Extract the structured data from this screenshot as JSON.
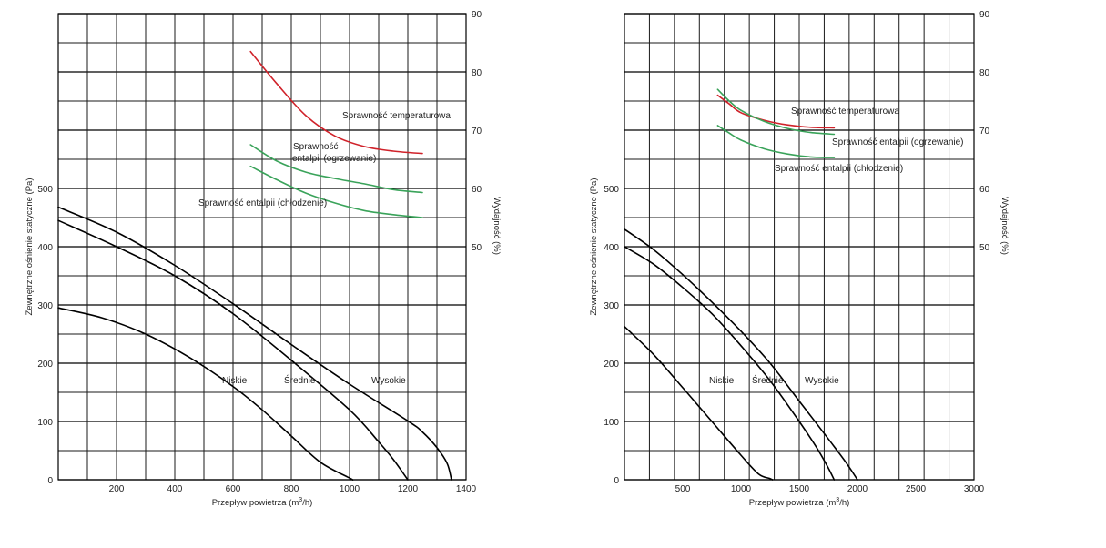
{
  "chart_data": [
    {
      "type": "line",
      "title": "",
      "xlabel": "Przepływ powietrza (m³/h)",
      "ylabel": "Zewnętrzne ośnienie statyczne (Pa)",
      "y2label": "Wydajność (%)",
      "xlim": [
        0,
        1400
      ],
      "ylim": [
        0,
        800
      ],
      "y2lim": [
        10,
        90
      ],
      "xticks": [
        "200",
        "400",
        "600",
        "800",
        "1000",
        "1200",
        "1400"
      ],
      "xtick_values": [
        200,
        400,
        600,
        800,
        1000,
        1200,
        1400
      ],
      "yticks": [
        "0",
        "100",
        "200",
        "300",
        "400",
        "500"
      ],
      "ytick_values": [
        0,
        100,
        200,
        300,
        400,
        500
      ],
      "y2ticks": [
        "50",
        "60",
        "70",
        "80",
        "90"
      ],
      "y2tick_values": [
        50,
        60,
        70,
        80,
        90
      ],
      "pressure_series": [
        {
          "name": "Niskie",
          "axis": "left",
          "color": "#000000",
          "x": [
            0,
            150,
            300,
            450,
            600,
            700,
            800,
            900,
            1000,
            1010
          ],
          "y": [
            295,
            278,
            250,
            210,
            160,
            120,
            75,
            30,
            3,
            0
          ]
        },
        {
          "name": "Średnie",
          "axis": "left",
          "color": "#000000",
          "x": [
            0,
            200,
            400,
            600,
            800,
            1000,
            1100,
            1150,
            1200
          ],
          "y": [
            445,
            400,
            350,
            285,
            205,
            120,
            65,
            35,
            0
          ]
        },
        {
          "name": "Wysokie",
          "axis": "left",
          "color": "#000000",
          "x": [
            0,
            200,
            400,
            600,
            800,
            1000,
            1200,
            1250,
            1300,
            1335,
            1350
          ],
          "y": [
            468,
            425,
            368,
            302,
            232,
            164,
            101,
            82,
            55,
            28,
            0
          ]
        }
      ],
      "efficiency_series": [
        {
          "name": "Sprawność temperaturowa",
          "axis": "right",
          "color": "#d0222a",
          "x": [
            660,
            750,
            850,
            950,
            1050,
            1150,
            1250
          ],
          "y": [
            83.5,
            78,
            72.5,
            69,
            67.2,
            66.4,
            66
          ]
        },
        {
          "name": "Sprawność entalpii (ogrzewanie)",
          "axis": "right",
          "color": "#3aa35a",
          "x": [
            660,
            750,
            850,
            950,
            1050,
            1150,
            1250
          ],
          "y": [
            67.5,
            64.7,
            62.8,
            61.7,
            60.8,
            59.8,
            59.3
          ]
        },
        {
          "name": "Sprawność entalpii (chłodzenie)",
          "axis": "right",
          "color": "#3aa35a",
          "x": [
            660,
            750,
            850,
            950,
            1050,
            1150,
            1250
          ],
          "y": [
            63.8,
            61.5,
            59.2,
            57.5,
            56.2,
            55.5,
            55
          ]
        }
      ],
      "labels": {
        "niskie": "Niskie",
        "srednie": "Średnie",
        "wysokie": "Wysokie",
        "temp": "Sprawność temperaturowa",
        "ogrz_1": "Sprawność",
        "ogrz_2": "entalpii (ogrzewanie)",
        "chl": "Sprawność entalpii (chłodzenie)"
      }
    },
    {
      "type": "line",
      "title": "",
      "xlabel": "Przepływ powietrza (m³/h)",
      "ylabel": "Zewnętrzne ośnienie statyczne (Pa)",
      "y2label": "Wydajność (%)",
      "xlim": [
        0,
        3000
      ],
      "ylim": [
        0,
        800
      ],
      "y2lim": [
        10,
        90
      ],
      "xticks": [
        "500",
        "1000",
        "1500",
        "2000",
        "2500",
        "3000"
      ],
      "xtick_values": [
        500,
        1000,
        1500,
        2000,
        2500,
        3000
      ],
      "yticks": [
        "0",
        "100",
        "200",
        "300",
        "400",
        "500"
      ],
      "ytick_values": [
        0,
        100,
        200,
        300,
        400,
        500
      ],
      "y2ticks": [
        "50",
        "60",
        "70",
        "80",
        "90"
      ],
      "y2tick_values": [
        50,
        60,
        70,
        80,
        90
      ],
      "pressure_series": [
        {
          "name": "Niskie",
          "axis": "left",
          "color": "#000000",
          "x": [
            0,
            250,
            500,
            750,
            1000,
            1150,
            1250,
            1270
          ],
          "y": [
            263,
            215,
            158,
            100,
            42,
            10,
            2,
            0
          ]
        },
        {
          "name": "Średnie",
          "axis": "left",
          "color": "#000000",
          "x": [
            0,
            250,
            500,
            750,
            1000,
            1250,
            1500,
            1650,
            1750,
            1800
          ],
          "y": [
            400,
            370,
            330,
            285,
            230,
            170,
            100,
            55,
            20,
            0
          ]
        },
        {
          "name": "Wysokie",
          "axis": "left",
          "color": "#000000",
          "x": [
            0,
            250,
            500,
            750,
            1000,
            1250,
            1500,
            1750,
            1900,
            2000
          ],
          "y": [
            430,
            395,
            352,
            305,
            255,
            200,
            135,
            70,
            30,
            0
          ]
        }
      ],
      "efficiency_series": [
        {
          "name": "Sprawność temperaturowa",
          "axis": "right",
          "color": "#d0222a",
          "x": [
            800,
            900,
            1000,
            1200,
            1400,
            1600,
            1800
          ],
          "y": [
            76,
            74.5,
            73,
            71.7,
            70.9,
            70.5,
            70.4
          ]
        },
        {
          "name": "Sprawność entalpii (ogrzewanie)",
          "axis": "right",
          "color": "#3aa35a",
          "x": [
            800,
            900,
            1000,
            1200,
            1400,
            1600,
            1800
          ],
          "y": [
            77,
            75,
            73.4,
            71.5,
            70.3,
            69.6,
            69.3
          ]
        },
        {
          "name": "Sprawność entalpii (chłodzenie)",
          "axis": "right",
          "color": "#3aa35a",
          "x": [
            800,
            900,
            1000,
            1200,
            1400,
            1600,
            1800
          ],
          "y": [
            70.8,
            69.5,
            68.3,
            66.8,
            65.9,
            65.4,
            65.3
          ]
        }
      ],
      "labels": {
        "niskie": "Niskie",
        "srednie": "Średnie",
        "wysokie": "Wysokie",
        "temp": "Sprawność temperaturowa",
        "ogrz": "Sprawność entalpii (ogrzewanie)",
        "chl": "Sprawność entalpii (chłodzenie)"
      }
    }
  ]
}
